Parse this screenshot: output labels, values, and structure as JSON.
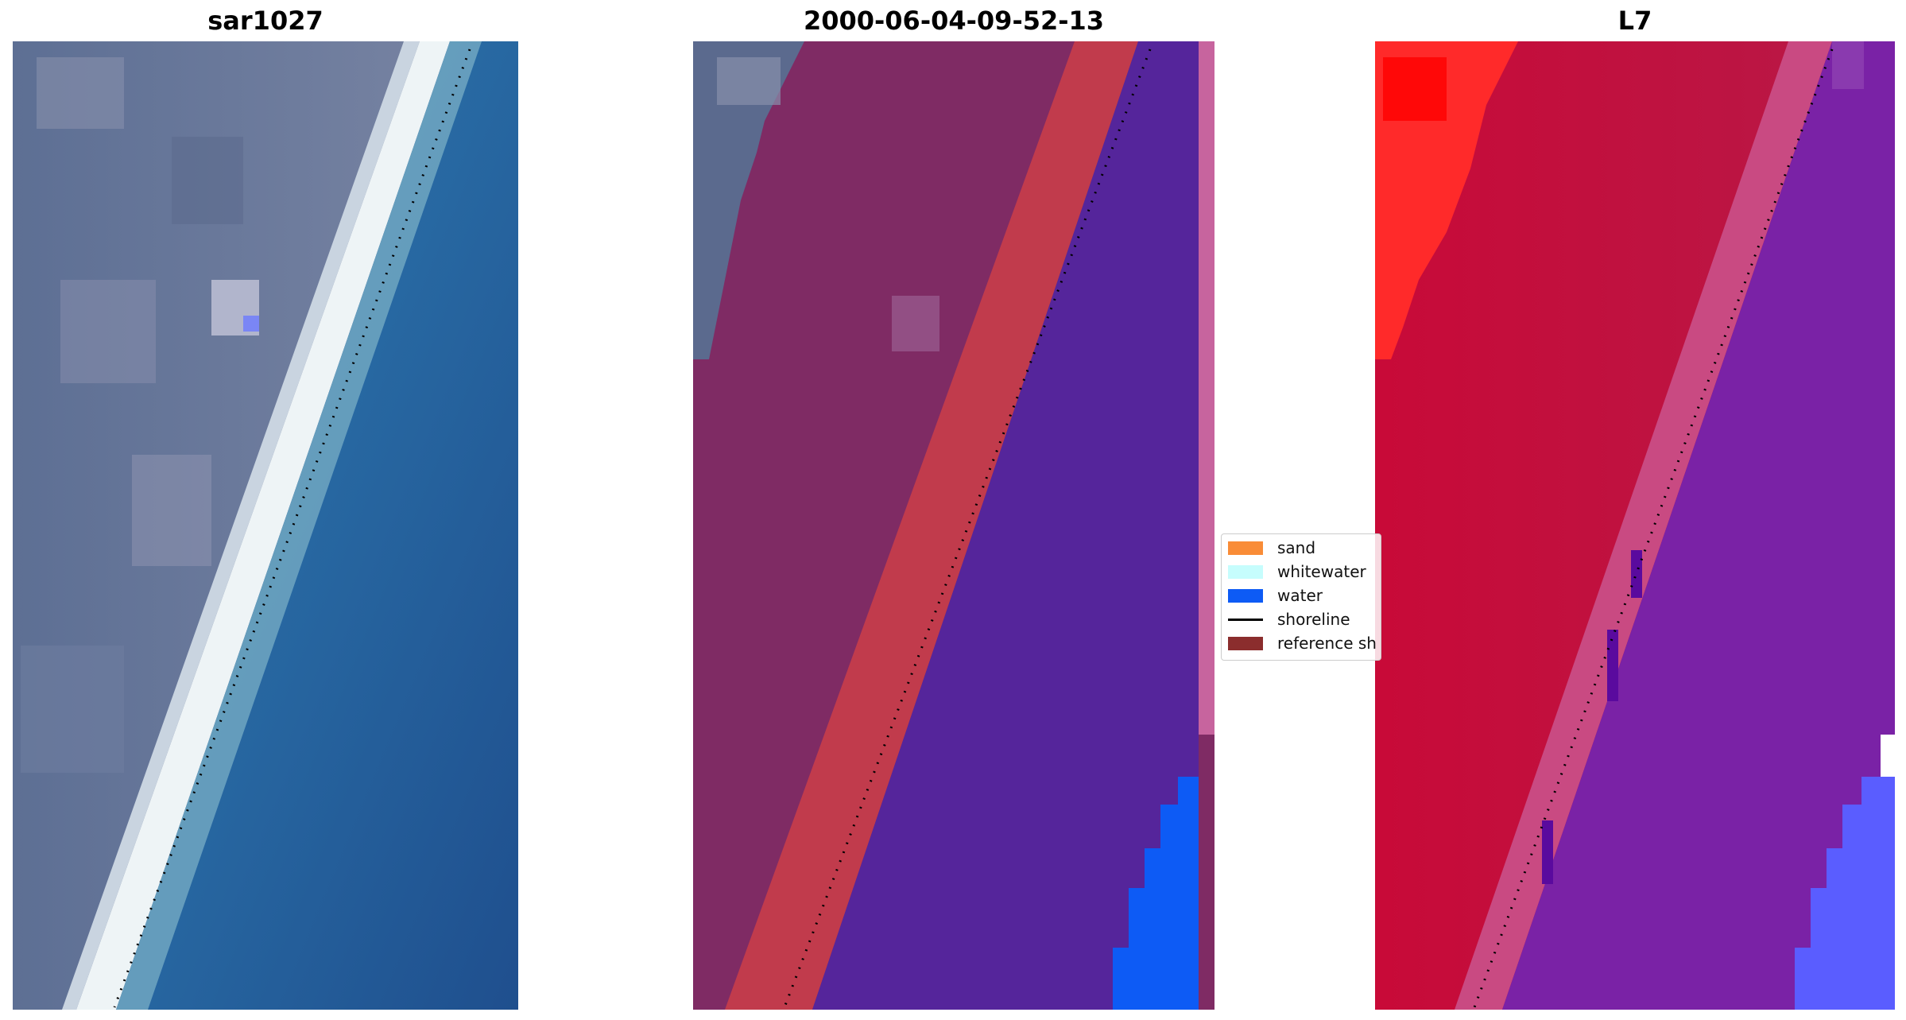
{
  "figure": {
    "titles": [
      "sar1027",
      "2000-06-04-09-52-13",
      "L7"
    ]
  },
  "legend": {
    "items": [
      {
        "label": "sand",
        "color": "#f98c37",
        "kind": "patch"
      },
      {
        "label": "whitewater",
        "color": "#c6fdfd",
        "kind": "patch"
      },
      {
        "label": "water",
        "color": "#0d5bf5",
        "kind": "patch"
      },
      {
        "label": "shoreline",
        "color": "#000000",
        "kind": "line"
      },
      {
        "label": "reference sh",
        "color": "#8b2d2d",
        "kind": "patch"
      }
    ]
  },
  "colors": {
    "land_rgb": "#6f7f9e",
    "beach_white": "#dfe9f0",
    "ocean_rgb": "#2a6aa6",
    "classified_land": "#7f2b64",
    "classified_sand": "#c13b4c",
    "classified_water": "#55259b",
    "water_blue": "#0d5bf5",
    "mndwi_red": "#c70a3a",
    "mndwi_bright": "#ff2020",
    "mndwi_purple": "#7a22a6",
    "mndwi_blue": "#5a5dff",
    "pink_strip": "#c7649e"
  }
}
